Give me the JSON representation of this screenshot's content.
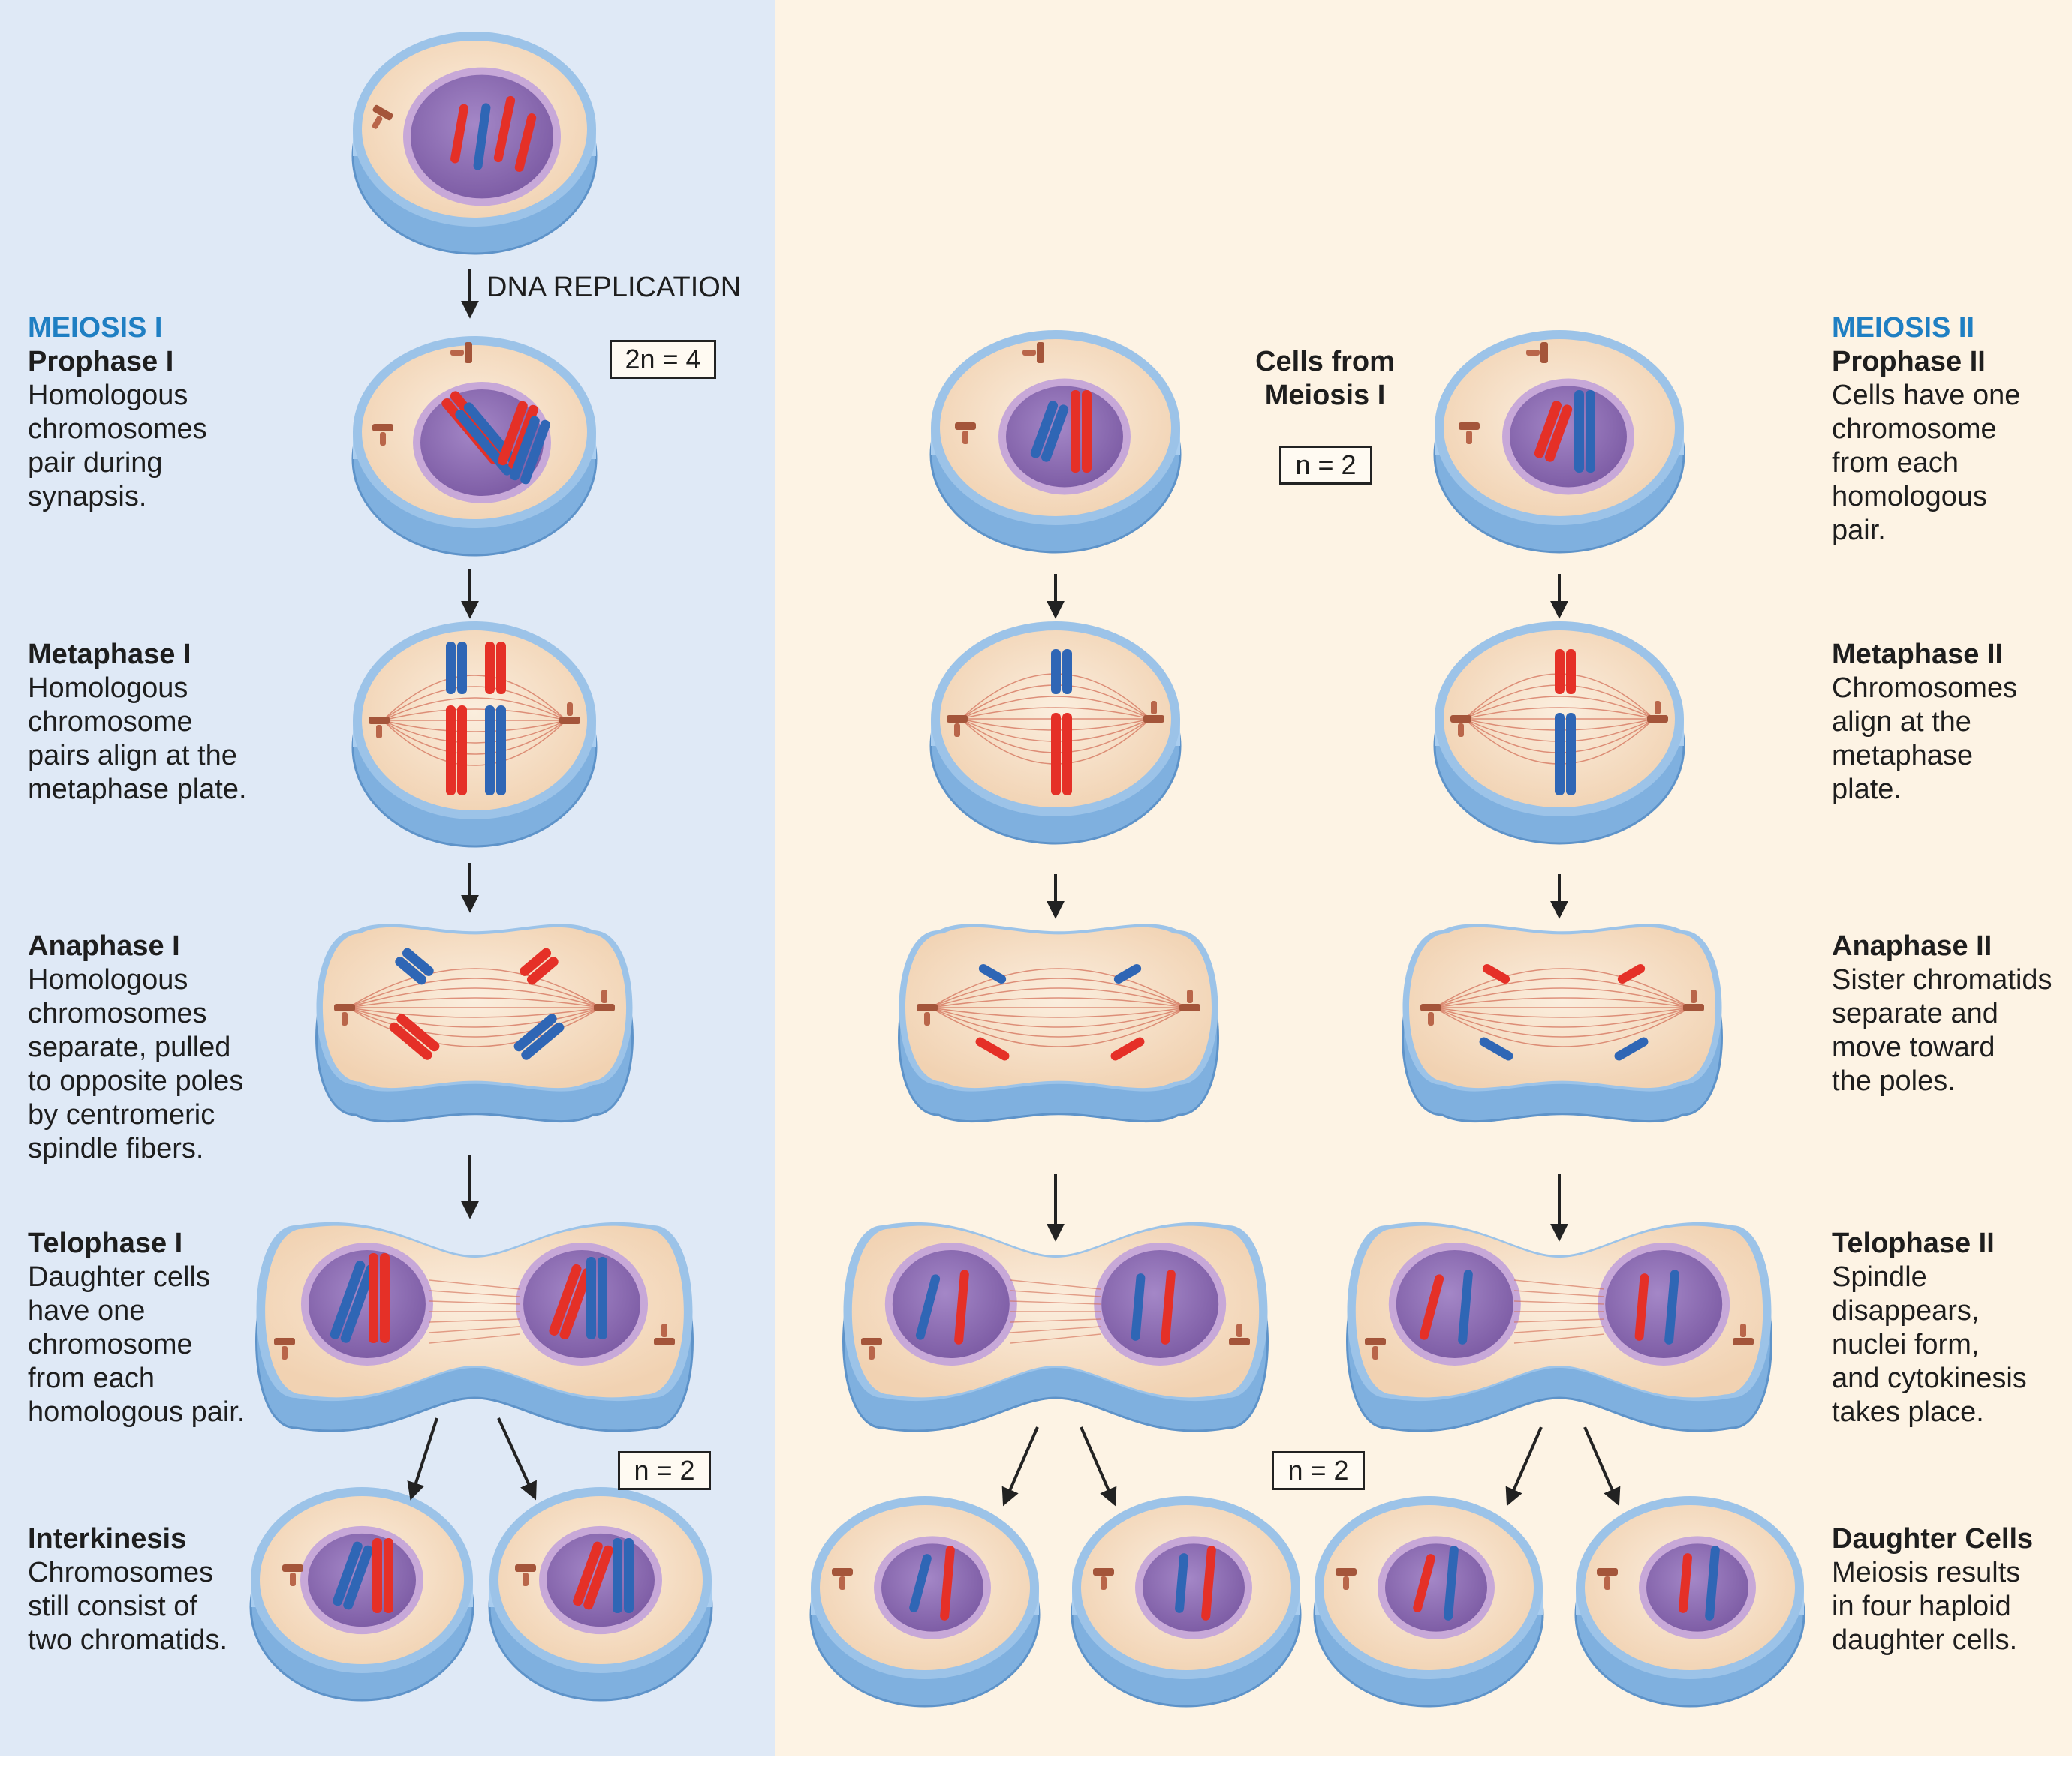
{
  "diagram": {
    "step_label": "DNA REPLICATION",
    "meiosis1_heading": "MEIOSIS I",
    "meiosis2_heading": "MEIOSIS II",
    "center_title": "Cells from\nMeiosis I",
    "ploidy": {
      "prophase1": "2n = 4",
      "center": "n = 2",
      "interkinesis": "n = 2",
      "daughters": "n = 2"
    },
    "stages_left": [
      {
        "title": "Prophase I",
        "text": "Homologous\nchromosomes\npair during\nsynapsis."
      },
      {
        "title": "Metaphase I",
        "text": "Homologous\nchromosome\npairs align at the\nmetaphase plate."
      },
      {
        "title": "Anaphase I",
        "text": "Homologous\nchromosomes\nseparate, pulled\nto opposite poles\nby centromeric\nspindle fibers."
      },
      {
        "title": "Telophase I",
        "text": "Daughter cells\nhave one\nchromosome\nfrom each\nhomologous pair."
      },
      {
        "title": "Interkinesis",
        "text": "Chromosomes\nstill consist of\ntwo chromatids."
      }
    ],
    "stages_right": [
      {
        "title": "Prophase II",
        "text": "Cells have one\nchromosome\nfrom each\nhomologous\npair."
      },
      {
        "title": "Metaphase II",
        "text": "Chromosomes\nalign at the\nmetaphase\nplate."
      },
      {
        "title": "Anaphase II",
        "text": "Sister chromatids\nseparate and\nmove toward\nthe poles."
      },
      {
        "title": "Telophase II",
        "text": "Spindle\ndisappears,\nnuclei form,\nand cytokinesis\ntakes place."
      },
      {
        "title": "Daughter Cells",
        "text": "Meiosis results\nin four haploid\ndaughter cells."
      }
    ],
    "colors": {
      "meiosis_blue": "#1f7fc3",
      "left_panel": "#dfe9f6",
      "right_panel": "#fdf3e4",
      "cytoplasm": "#f6dcc0",
      "membrane": "#9cc3e8",
      "nucleus": "#8e6bb3",
      "chromosome_red": "#e53027",
      "chromosome_blue": "#2f66b5"
    }
  }
}
